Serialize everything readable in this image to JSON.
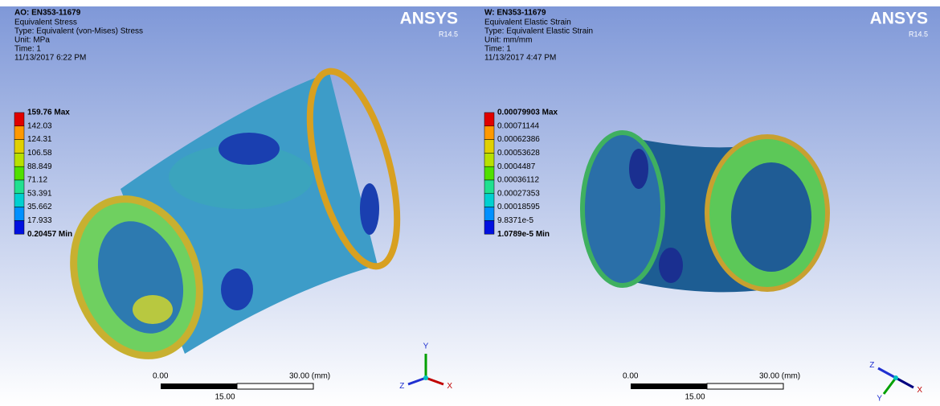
{
  "panels": [
    {
      "title": "AO: EN353-11679",
      "info": [
        "Equivalent Stress",
        "Type: Equivalent (von-Mises) Stress",
        "Unit: MPa",
        "Time: 1",
        "11/13/2017 6:22 PM"
      ],
      "logo": "ANSYS",
      "version": "R14.5",
      "legend": [
        "159.76 Max",
        "142.03",
        "124.31",
        "106.58",
        "88.849",
        "71.12",
        "53.391",
        "35.662",
        "17.933",
        "0.20457 Min"
      ],
      "scale": {
        "start": "0.00",
        "end": "30.00 (mm)",
        "mid": "15.00"
      },
      "triad": [
        "Y",
        "Z",
        "X"
      ]
    },
    {
      "title": "W: EN353-11679",
      "info": [
        "Equivalent Elastic Strain",
        "Type: Equivalent Elastic Strain",
        "Unit: mm/mm",
        "Time: 1",
        "11/13/2017 4:47 PM"
      ],
      "logo": "ANSYS",
      "version": "R14.5",
      "legend": [
        "0.00079903 Max",
        "0.00071144",
        "0.00062386",
        "0.00053628",
        "0.0004487",
        "0.00036112",
        "0.00027353",
        "0.00018595",
        "9.8371e-5",
        "1.0789e-5 Min"
      ],
      "scale": {
        "start": "0.00",
        "end": "30.00 (mm)",
        "mid": "15.00"
      },
      "triad": [
        "Z",
        "Y",
        "X"
      ]
    }
  ]
}
